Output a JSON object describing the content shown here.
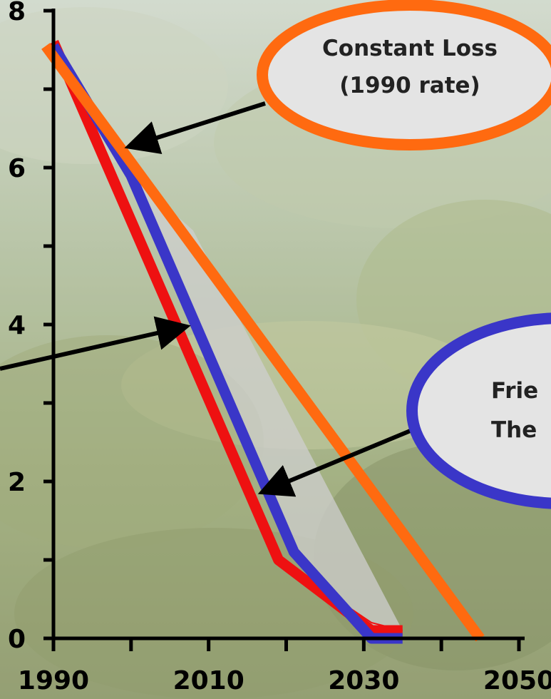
{
  "chart_data": {
    "type": "line",
    "title": "",
    "xlabel": "",
    "ylabel": "",
    "xlim": [
      1990,
      2050
    ],
    "ylim": [
      0,
      8
    ],
    "x_ticks": [
      1990,
      2000,
      2010,
      2020,
      2030,
      2040,
      2050
    ],
    "x_tick_labels": [
      "1990",
      "2010",
      "2030",
      "2050"
    ],
    "x_tick_label_values": [
      1990,
      2010,
      2030,
      2050
    ],
    "y_ticks": [
      0,
      1,
      2,
      3,
      4,
      5,
      6,
      7,
      8
    ],
    "y_tick_labels": [
      "0",
      "2",
      "4",
      "6",
      "8"
    ],
    "y_tick_label_values": [
      0,
      2,
      4,
      6,
      8
    ],
    "series": [
      {
        "color": "#ee1111",
        "points": [
          [
            1990,
            7.6
          ],
          [
            2019,
            1.0
          ],
          [
            2031,
            0.1
          ],
          [
            2035,
            0.1
          ]
        ]
      },
      {
        "color": "#3a36c8",
        "points": [
          [
            1990,
            7.55
          ],
          [
            2000,
            5.9
          ],
          [
            2021,
            1.1
          ],
          [
            2031,
            0.0
          ],
          [
            2035,
            0.0
          ]
        ]
      },
      {
        "color": "#ff6a10",
        "points": [
          [
            1989,
            7.55
          ],
          [
            2045,
            0.0
          ]
        ]
      }
    ],
    "annotations": [
      {
        "label_lines": [
          "Constant Loss",
          "(1990 rate)"
        ],
        "border_color": "#ff6a10",
        "arrow_to": [
          2000,
          6.3
        ]
      },
      {
        "label_lines": [
          "Frie",
          "The"
        ],
        "border_color": "#3a36c8",
        "arrow_to": [
          2017,
          1.9
        ]
      },
      {
        "label_lines": [],
        "arrow_to": [
          2007,
          4.0
        ]
      }
    ],
    "background_image": "forest-clearing-photo",
    "colors": {
      "axis": "#000000",
      "bubble_fill": "#e4e4e4"
    }
  }
}
